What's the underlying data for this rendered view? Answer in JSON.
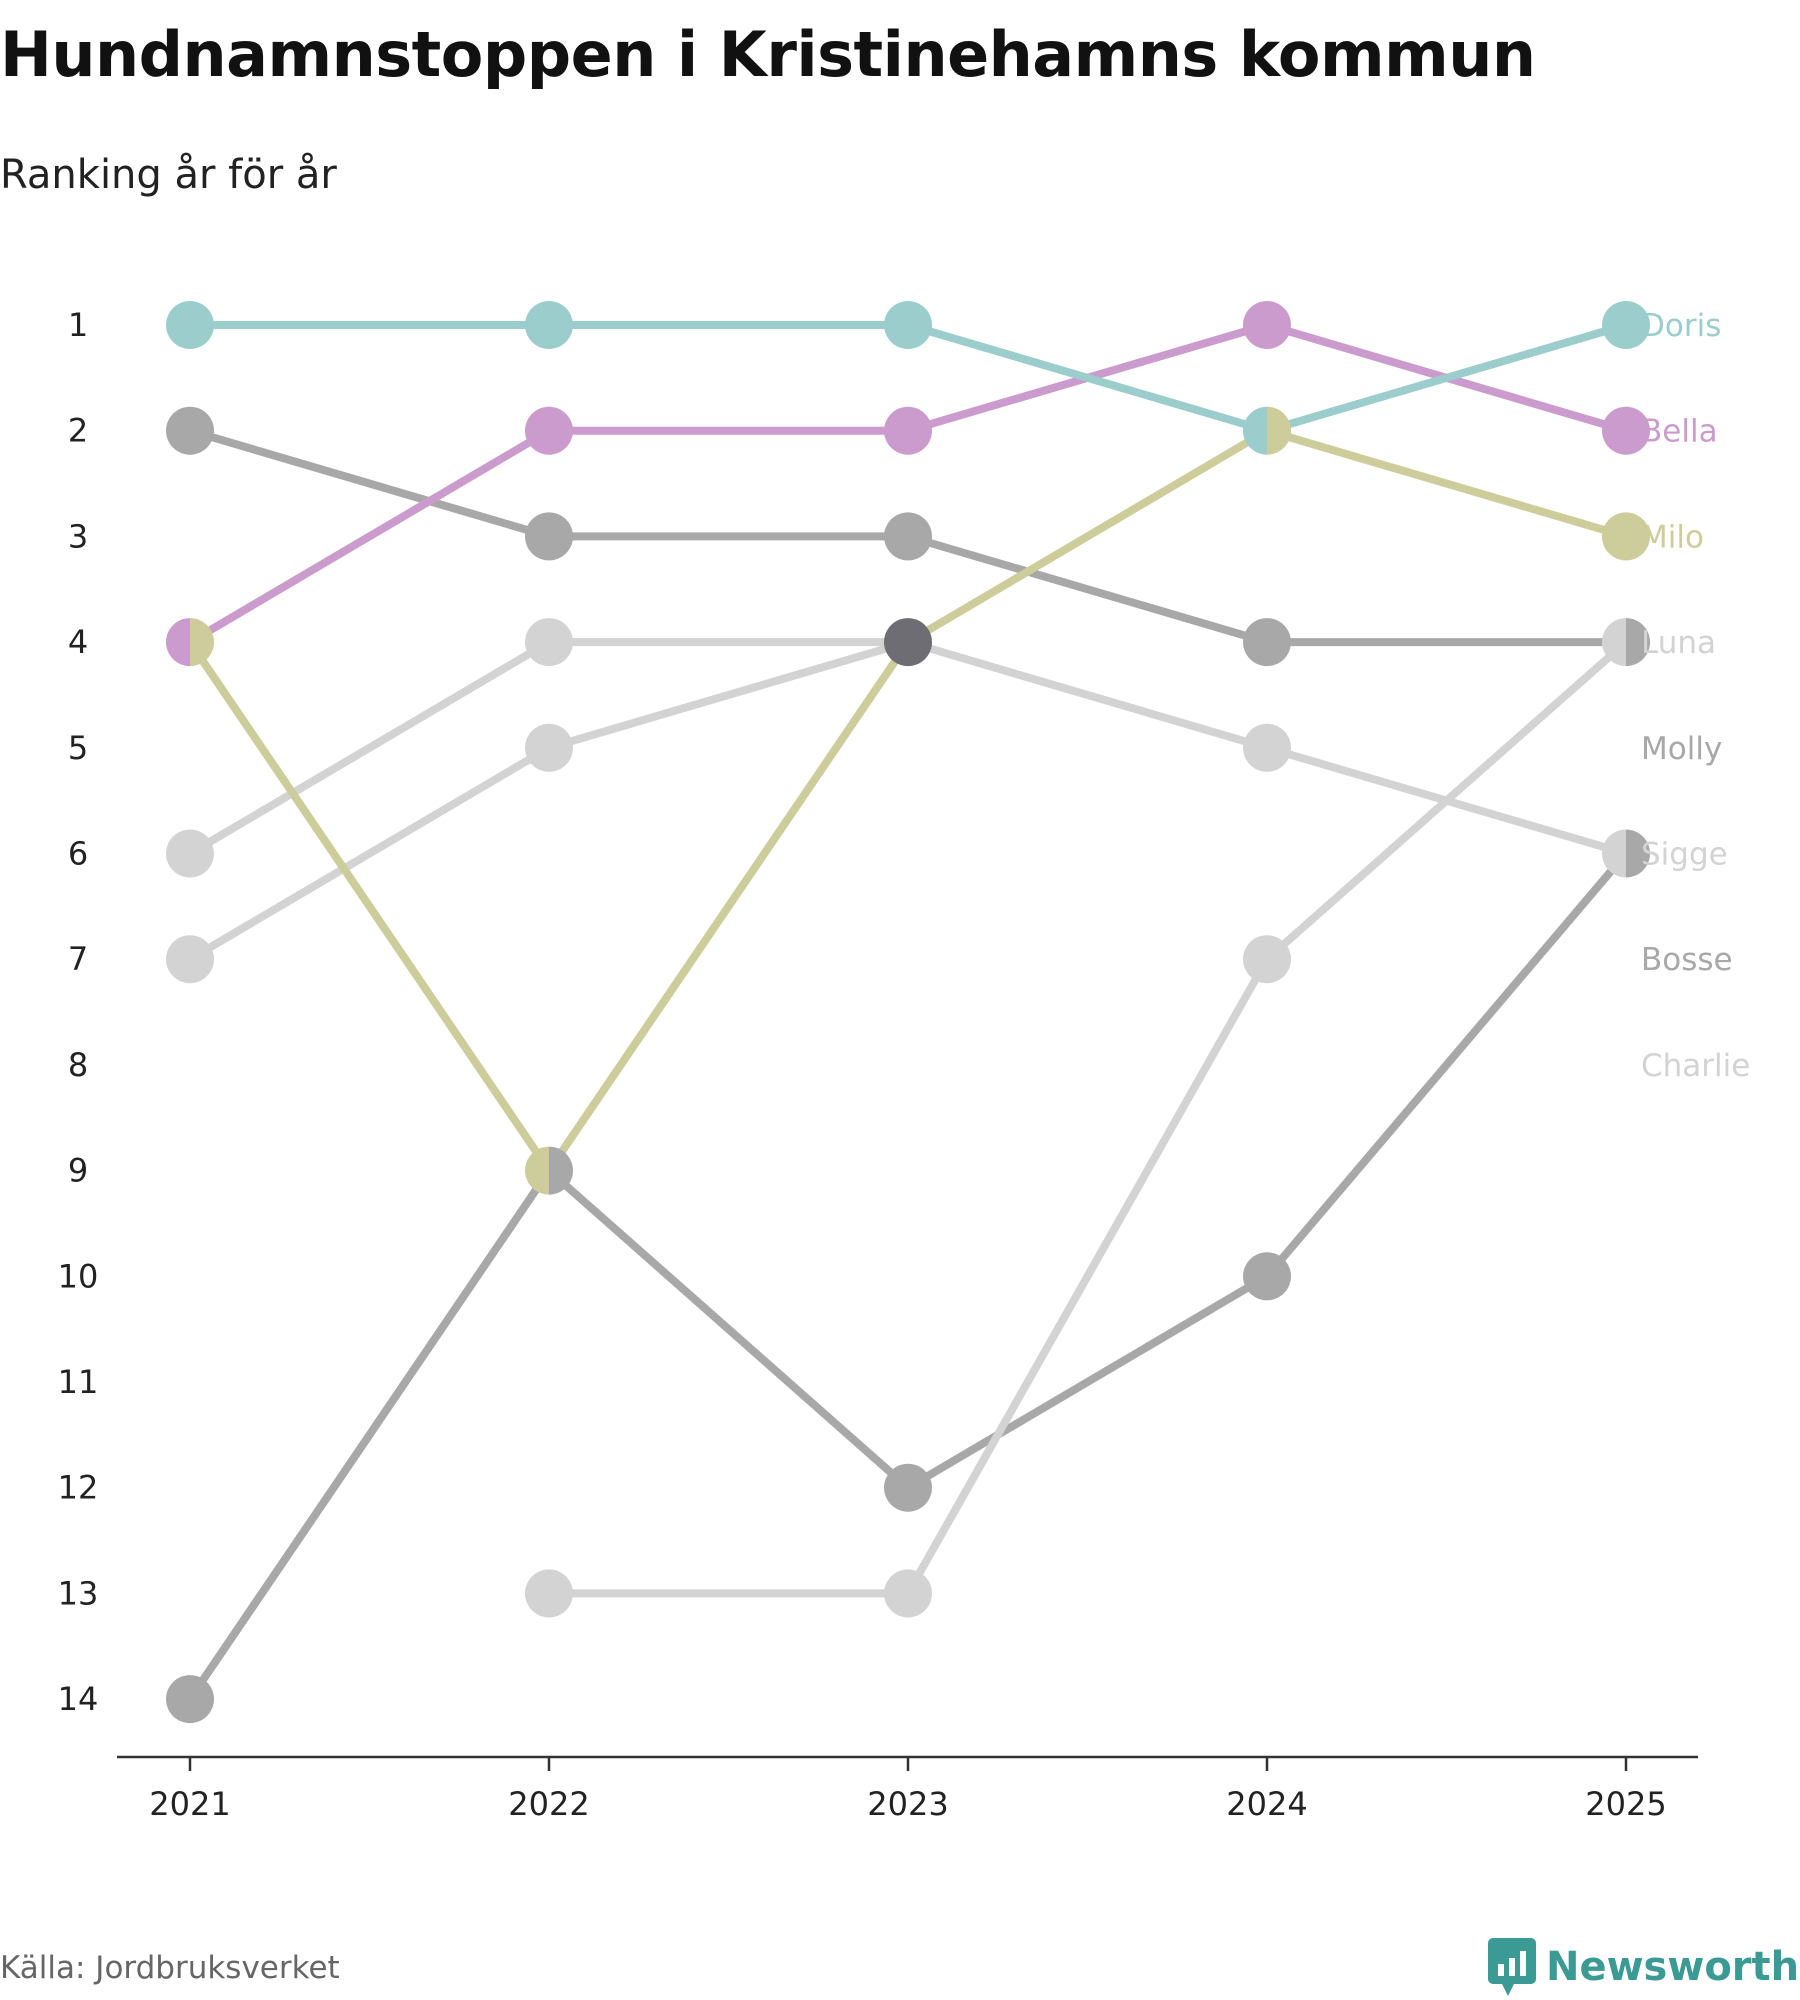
{
  "chart_data": {
    "type": "line",
    "title": "Hundnamnstoppen i Kristinehamns kommun",
    "subtitle": "Ranking år för år",
    "source": "Källa: Jordbruksverket",
    "brand": "Newsworthy",
    "x": [
      "2021",
      "2022",
      "2023",
      "2024",
      "2025"
    ],
    "ylim": [
      1,
      14
    ],
    "yticks": [
      "1",
      "2",
      "3",
      "4",
      "5",
      "6",
      "7",
      "8",
      "9",
      "10",
      "11",
      "12",
      "13",
      "14"
    ],
    "series": [
      {
        "name": "Doris",
        "color": "#9bcdcd",
        "values": [
          1,
          1,
          1,
          2,
          1
        ]
      },
      {
        "name": "Bella",
        "color": "#cc9bcd",
        "values": [
          4,
          2,
          2,
          1,
          2
        ]
      },
      {
        "name": "Milo",
        "color": "#cdcd9b",
        "values": [
          4,
          9,
          4,
          2,
          3
        ]
      },
      {
        "name": "Luna",
        "color": "#d3d3d3",
        "values": [
          null,
          13,
          13,
          7,
          4
        ]
      },
      {
        "name": "Molly",
        "color": "#a8a8a8",
        "values": [
          2,
          3,
          3,
          4,
          4
        ]
      },
      {
        "name": "Sigge",
        "color": "#d3d3d3",
        "values": [
          6,
          4,
          4,
          5,
          6
        ]
      },
      {
        "name": "Bosse",
        "color": "#a8a8a8",
        "values": [
          14,
          9,
          12,
          10,
          6
        ]
      },
      {
        "name": "Charlie",
        "color": "#d3d3d3",
        "values": [
          7,
          5,
          4,
          null,
          null
        ]
      }
    ],
    "overlap_color": "#6e6d74"
  }
}
